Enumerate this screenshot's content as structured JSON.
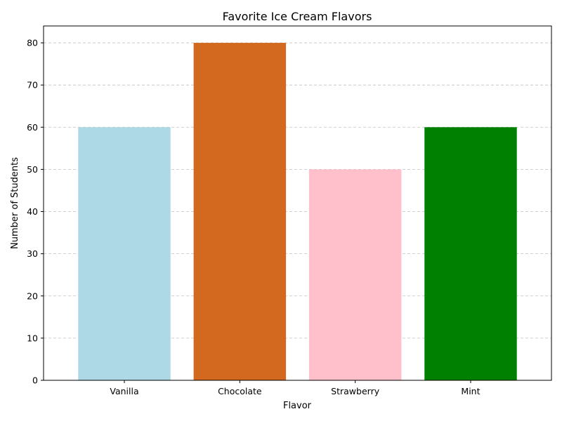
{
  "chart_data": {
    "type": "bar",
    "title": "Favorite Ice Cream Flavors",
    "xlabel": "Flavor",
    "ylabel": "Number of Students",
    "categories": [
      "Vanilla",
      "Chocolate",
      "Strawberry",
      "Mint"
    ],
    "values": [
      60,
      80,
      50,
      60
    ],
    "colors": [
      "#add8e6",
      "#d2691e",
      "#ffc0cb",
      "#008000"
    ],
    "ylim": [
      0,
      84
    ],
    "yticks": [
      0,
      10,
      20,
      30,
      40,
      50,
      60,
      70,
      80
    ],
    "grid": {
      "y": true,
      "style": "dashed",
      "color": "#c0c0c0"
    },
    "legend": "none"
  }
}
